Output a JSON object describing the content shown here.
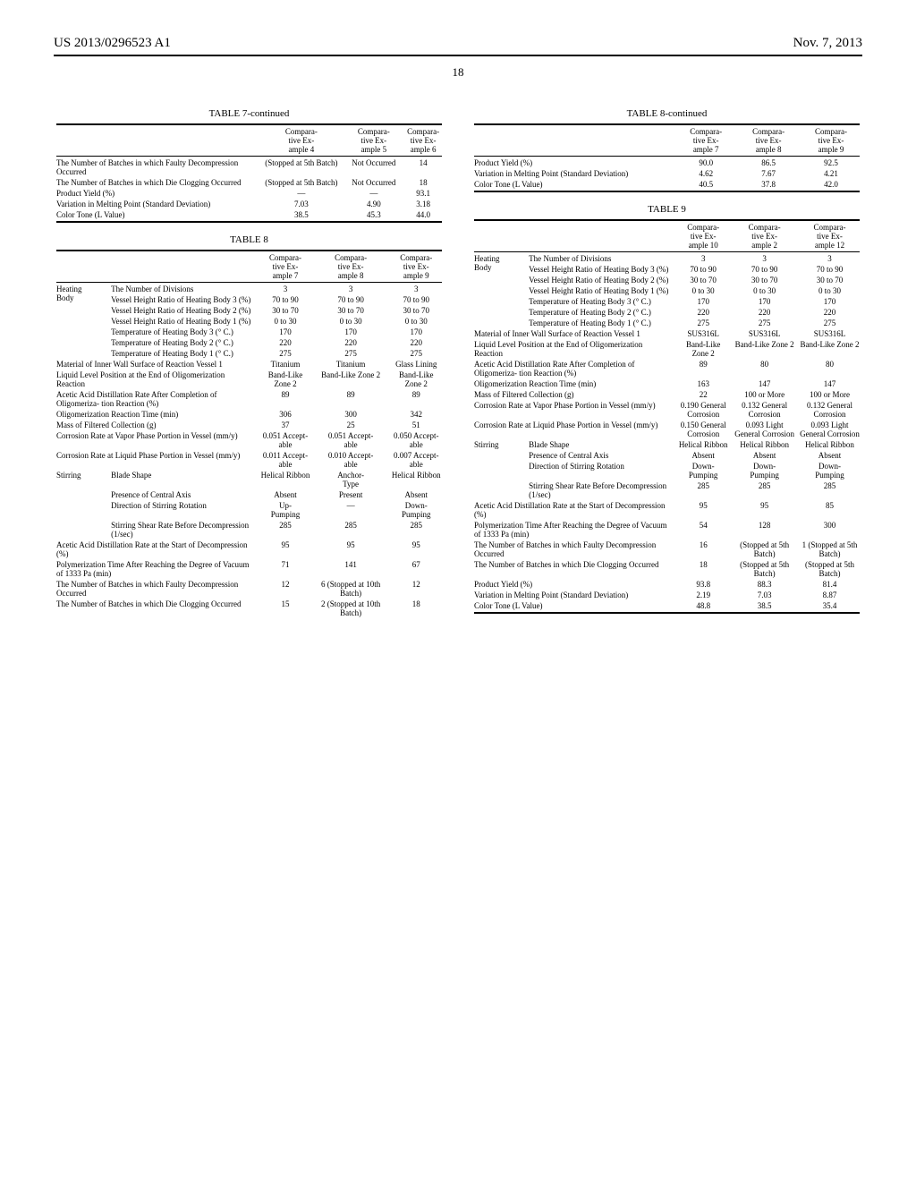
{
  "header": {
    "left": "US 2013/0296523 A1",
    "right": "Nov. 7, 2013"
  },
  "page_number": "18",
  "table7": {
    "title": "TABLE 7-continued",
    "col_headers": [
      "Compara-\ntive Ex-\nample 4",
      "Compara-\ntive Ex-\nample 5",
      "Compara-\ntive Ex-\nample 6"
    ],
    "rows": [
      {
        "label": "The Number of Batches in which Faulty Decompression Occurred",
        "v": [
          "(Stopped at 5th Batch)",
          "Not Occurred",
          "14"
        ]
      },
      {
        "label": "The Number of Batches in which Die Clogging Occurred",
        "v": [
          "(Stopped at 5th Batch)",
          "Not Occurred",
          "18"
        ]
      },
      {
        "label": "Product Yield (%)",
        "v": [
          "—",
          "—",
          "93.1"
        ]
      },
      {
        "label": "Variation in Melting Point (Standard Deviation)",
        "v": [
          "7.03",
          "4.90",
          "3.18"
        ]
      },
      {
        "label": "Color Tone (L Value)",
        "v": [
          "38.5",
          "45.3",
          "44.0"
        ]
      }
    ]
  },
  "table8": {
    "title": "TABLE 8",
    "title_cont": "TABLE 8-continued",
    "col_headers": [
      "Compara-\ntive Ex-\nample 7",
      "Compara-\ntive Ex-\nample 8",
      "Compara-\ntive Ex-\nample 9"
    ],
    "heating_label": "Heating Body",
    "heating_rows": [
      {
        "label": "The Number of Divisions",
        "v": [
          "3",
          "3",
          "3"
        ]
      },
      {
        "label": "Vessel Height Ratio of Heating Body 3 (%)",
        "v": [
          "70 to 90",
          "70 to 90",
          "70 to 90"
        ]
      },
      {
        "label": "Vessel Height Ratio of Heating Body 2 (%)",
        "v": [
          "30 to 70",
          "30 to 70",
          "30 to 70"
        ]
      },
      {
        "label": "Vessel Height Ratio of Heating Body 1 (%)",
        "v": [
          "0 to 30",
          "0 to 30",
          "0 to 30"
        ]
      },
      {
        "label": "Temperature of Heating Body 3 (° C.)",
        "v": [
          "170",
          "170",
          "170"
        ]
      },
      {
        "label": "Temperature of Heating Body 2 (° C.)",
        "v": [
          "220",
          "220",
          "220"
        ]
      },
      {
        "label": "Temperature of Heating Body 1 (° C.)",
        "v": [
          "275",
          "275",
          "275"
        ]
      }
    ],
    "mid_rows": [
      {
        "label": "Material of Inner Wall Surface of Reaction Vessel 1",
        "v": [
          "Titanium",
          "Titanium",
          "Glass Lining"
        ]
      },
      {
        "label": "Liquid Level Position at the End of Oligomerization Reaction",
        "v": [
          "Band-Like Zone 2",
          "Band-Like Zone 2",
          "Band-Like Zone 2"
        ]
      },
      {
        "label": "Acetic Acid Distillation Rate After Completion of Oligomeriza-\ntion Reaction (%)",
        "v": [
          "89",
          "89",
          "89"
        ]
      },
      {
        "label": "Oligomerization Reaction Time (min)",
        "v": [
          "306",
          "300",
          "342"
        ]
      },
      {
        "label": "Mass of Filtered Collection (g)",
        "v": [
          "37",
          "25",
          "51"
        ]
      },
      {
        "label": "Corrosion Rate at Vapor Phase Portion in Vessel (mm/y)",
        "v": [
          "0.051 Accept-\nable",
          "0.051 Accept-\nable",
          "0.050 Accept-\nable"
        ]
      },
      {
        "label": "Corrosion Rate at Liquid Phase Portion in Vessel (mm/y)",
        "v": [
          "0.011 Accept-\nable",
          "0.010 Accept-\nable",
          "0.007 Accept-\nable"
        ]
      }
    ],
    "stirring_label": "Stirring",
    "stirring_rows": [
      {
        "label": "Blade Shape",
        "v": [
          "Helical Ribbon",
          "Anchor-\nType",
          "Helical Ribbon"
        ]
      },
      {
        "label": "Presence of Central Axis",
        "v": [
          "Absent",
          "Present",
          "Absent"
        ]
      },
      {
        "label": "Direction of Stirring Rotation",
        "v": [
          "Up-\nPumping",
          "—",
          "Down-\nPumping"
        ]
      },
      {
        "label": "Stirring Shear Rate Before Decompression (1/sec)",
        "v": [
          "285",
          "285",
          "285"
        ]
      }
    ],
    "bottom_rows": [
      {
        "label": "Acetic Acid Distillation Rate at the Start of Decompression (%)",
        "v": [
          "95",
          "95",
          "95"
        ]
      },
      {
        "label": "Polymerization Time After Reaching the Degree of Vacuum of 1333 Pa (min)",
        "v": [
          "71",
          "141",
          "67"
        ]
      },
      {
        "label": "The Number of Batches in which Faulty Decompression Occurred",
        "v": [
          "12",
          "6 (Stopped at 10th Batch)",
          "12"
        ]
      },
      {
        "label": "The Number of Batches in which Die Clogging Occurred",
        "v": [
          "15",
          "2 (Stopped at 10th Batch)",
          "18"
        ]
      }
    ],
    "cont_rows": [
      {
        "label": "Product Yield (%)",
        "v": [
          "90.0",
          "86.5",
          "92.5"
        ]
      },
      {
        "label": "Variation in Melting Point (Standard Deviation)",
        "v": [
          "4.62",
          "7.67",
          "4.21"
        ]
      },
      {
        "label": "Color Tone (L Value)",
        "v": [
          "40.5",
          "37.8",
          "42.0"
        ]
      }
    ]
  },
  "table9": {
    "title": "TABLE 9",
    "col_headers": [
      "Compara-\ntive Ex-\nample 10",
      "Compara-\ntive Ex-\nample 2",
      "Compara-\ntive Ex-\nample 12"
    ],
    "heating_label": "Heating Body",
    "heating_rows": [
      {
        "label": "The Number of Divisions",
        "v": [
          "3",
          "3",
          "3"
        ]
      },
      {
        "label": "Vessel Height Ratio of Heating Body 3 (%)",
        "v": [
          "70 to 90",
          "70 to 90",
          "70 to 90"
        ]
      },
      {
        "label": "Vessel Height Ratio of Heating Body 2 (%)",
        "v": [
          "30 to 70",
          "30 to 70",
          "30 to 70"
        ]
      },
      {
        "label": "Vessel Height Ratio of Heating Body 1 (%)",
        "v": [
          "0 to 30",
          "0 to 30",
          "0 to 30"
        ]
      },
      {
        "label": "Temperature of Heating Body 3 (° C.)",
        "v": [
          "170",
          "170",
          "170"
        ]
      },
      {
        "label": "Temperature of Heating Body 2 (° C.)",
        "v": [
          "220",
          "220",
          "220"
        ]
      },
      {
        "label": "Temperature of Heating Body 1 (° C.)",
        "v": [
          "275",
          "275",
          "275"
        ]
      }
    ],
    "mid_rows": [
      {
        "label": "Material of Inner Wall Surface of Reaction Vessel 1",
        "v": [
          "SUS316L",
          "SUS316L",
          "SUS316L"
        ]
      },
      {
        "label": "Liquid Level Position at the End of Oligomerization Reaction",
        "v": [
          "Band-Like Zone 2",
          "Band-Like Zone 2",
          "Band-Like Zone 2"
        ]
      },
      {
        "label": "Acetic Acid Distillation Rate After Completion of Oligomeriza-\ntion Reaction (%)",
        "v": [
          "89",
          "80",
          "80"
        ]
      },
      {
        "label": "Oligomerization Reaction Time (min)",
        "v": [
          "163",
          "147",
          "147"
        ]
      },
      {
        "label": "Mass of Filtered Collection (g)",
        "v": [
          "22",
          "100 or More",
          "100 or More"
        ]
      },
      {
        "label": "Corrosion Rate at Vapor Phase Portion in Vessel (mm/y)",
        "v": [
          "0.190 General Corrosion",
          "0.132 General Corrosion",
          "0.132 General Corrosion"
        ]
      },
      {
        "label": "Corrosion Rate at Liquid Phase Portion in Vessel (mm/y)",
        "v": [
          "0.150 General Corrosion",
          "0.093 Light General Corrosion",
          "0.093 Light General Corrosion"
        ]
      }
    ],
    "stirring_label": "Stirring",
    "stirring_rows": [
      {
        "label": "Blade Shape",
        "v": [
          "Helical Ribbon",
          "Helical Ribbon",
          "Helical Ribbon"
        ]
      },
      {
        "label": "Presence of Central Axis",
        "v": [
          "Absent",
          "Absent",
          "Absent"
        ]
      },
      {
        "label": "Direction of Stirring Rotation",
        "v": [
          "Down-\nPumping",
          "Down-\nPumping",
          "Down-\nPumping"
        ]
      },
      {
        "label": "Stirring Shear Rate Before Decompression (1/sec)",
        "v": [
          "285",
          "285",
          "285"
        ]
      }
    ],
    "bottom_rows": [
      {
        "label": "Acetic Acid Distillation Rate at the Start of Decompression (%)",
        "v": [
          "95",
          "95",
          "85"
        ]
      },
      {
        "label": "Polymerization Time After Reaching the Degree of Vacuum of 1333 Pa (min)",
        "v": [
          "54",
          "128",
          "300"
        ]
      },
      {
        "label": "The Number of Batches in which Faulty Decompression Occurred",
        "v": [
          "16",
          "(Stopped at 5th Batch)",
          "1 (Stopped at 5th Batch)"
        ]
      },
      {
        "label": "The Number of Batches in which Die Clogging Occurred",
        "v": [
          "18",
          "(Stopped at 5th Batch)",
          "(Stopped at 5th Batch)"
        ]
      },
      {
        "label": "Product Yield (%)",
        "v": [
          "93.8",
          "88.3",
          "81.4"
        ]
      },
      {
        "label": "Variation in Melting Point (Standard Deviation)",
        "v": [
          "2.19",
          "7.03",
          "8.87"
        ]
      },
      {
        "label": "Color Tone (L Value)",
        "v": [
          "48.8",
          "38.5",
          "35.4"
        ]
      }
    ]
  }
}
